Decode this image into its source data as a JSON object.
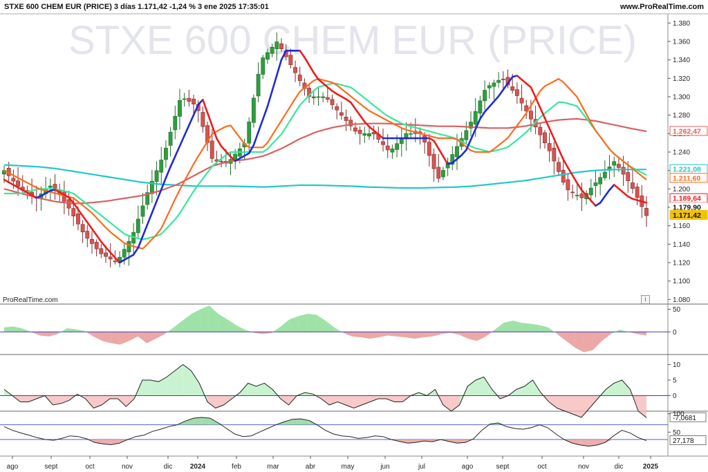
{
  "header": {
    "title_line": "STXE 600 CHEM EUR (PRICE) 3 días 1.171,42 -1,24 % 3 ene 2025 17:35:01",
    "brand": "www.ProRealTime.com"
  },
  "watermark": "STXE 600 CHEM EUR (PRICE)",
  "footer_brand": "ProRealTime.com",
  "icons": {
    "info": "i"
  },
  "colors": {
    "bull": "#2e9e3e",
    "bear": "#d9534f",
    "ma_fast_up": "#1f2ad6",
    "ma_fast_down": "#ee1c1c",
    "ma_orange": "#ff6a1a",
    "ma_green": "#34e89e",
    "ma_red": "#d9605e",
    "ma_cyan": "#1ec8c8",
    "last_price_badge": "#f2c200"
  },
  "chart_data": [
    {
      "type": "candlestick",
      "instrument": "STXE 600 CHEM EUR (PRICE)",
      "timeframe": "3 días",
      "ylim": [
        1.075,
        1.39
      ],
      "y_ticks": [
        "1.080",
        "1.100",
        "1.120",
        "1.140",
        "1.160",
        "1.180",
        "1.200",
        "1.220",
        "1.240",
        "1.260",
        "1.280",
        "1.300",
        "1.320",
        "1.340",
        "1.360",
        "1.380"
      ],
      "x_ticks": [
        "ago",
        "sept",
        "oct",
        "nov",
        "dic",
        "2024",
        "feb",
        "mar",
        "abr",
        "may",
        "jun",
        "jul",
        "ago",
        "sept",
        "oct",
        "nov",
        "dic",
        "2025"
      ],
      "last_price": "1.171,42",
      "price_labels": [
        {
          "text": "1.262,47",
          "value": 1.2625,
          "color": "#d9605e",
          "style": "outline"
        },
        {
          "text": "1.221,08",
          "value": 1.2211,
          "color": "#1ec8c8",
          "style": "outline"
        },
        {
          "text": "1.211,60",
          "value": 1.2116,
          "color": "#ff6a1a",
          "style": "outline"
        },
        {
          "text": "1.189,64",
          "value": 1.1896,
          "color": "#ee1c1c",
          "style": "outline"
        },
        {
          "text": "1.179,90",
          "value": 1.1799,
          "color": "#333333",
          "style": "plain"
        },
        {
          "text": "1.171,42",
          "value": 1.1714,
          "color": "#f2c200",
          "style": "filled"
        }
      ],
      "close_anchors": [
        1.22,
        1.2,
        1.19,
        1.205,
        1.18,
        1.15,
        1.13,
        1.12,
        1.15,
        1.2,
        1.24,
        1.3,
        1.29,
        1.23,
        1.23,
        1.25,
        1.34,
        1.36,
        1.33,
        1.3,
        1.3,
        1.28,
        1.26,
        1.26,
        1.24,
        1.26,
        1.26,
        1.21,
        1.24,
        1.27,
        1.31,
        1.32,
        1.3,
        1.27,
        1.24,
        1.2,
        1.19,
        1.21,
        1.23,
        1.205,
        1.171
      ],
      "ma_fast_anchors": [
        1.21,
        1.2,
        1.19,
        1.2,
        1.19,
        1.165,
        1.14,
        1.12,
        1.13,
        1.175,
        1.22,
        1.26,
        1.3,
        1.25,
        1.23,
        1.24,
        1.29,
        1.35,
        1.35,
        1.32,
        1.305,
        1.295,
        1.27,
        1.255,
        1.255,
        1.255,
        1.255,
        1.225,
        1.24,
        1.28,
        1.3,
        1.325,
        1.31,
        1.27,
        1.23,
        1.2,
        1.18,
        1.205,
        1.19,
        1.185
      ],
      "ma_orange_anchors": [
        1.22,
        1.21,
        1.2,
        1.195,
        1.19,
        1.175,
        1.155,
        1.14,
        1.135,
        1.155,
        1.195,
        1.23,
        1.26,
        1.27,
        1.245,
        1.245,
        1.275,
        1.305,
        1.32,
        1.315,
        1.3,
        1.285,
        1.275,
        1.265,
        1.26,
        1.255,
        1.255,
        1.24,
        1.24,
        1.255,
        1.28,
        1.31,
        1.32,
        1.3,
        1.265,
        1.24,
        1.225,
        1.21
      ],
      "ma_green_anchors": [
        1.195,
        1.195,
        1.2,
        1.2,
        1.195,
        1.18,
        1.165,
        1.15,
        1.145,
        1.15,
        1.17,
        1.2,
        1.225,
        1.24,
        1.24,
        1.24,
        1.26,
        1.29,
        1.31,
        1.315,
        1.31,
        1.295,
        1.28,
        1.27,
        1.265,
        1.26,
        1.255,
        1.245,
        1.24,
        1.245,
        1.26,
        1.28,
        1.295,
        1.29,
        1.265,
        1.24,
        1.225,
        1.215
      ],
      "ma_red_anchors": [
        1.2,
        1.195,
        1.19,
        1.186,
        1.184,
        1.185,
        1.187,
        1.19,
        1.193,
        1.198,
        1.205,
        1.215,
        1.225,
        1.23,
        1.232,
        1.236,
        1.244,
        1.254,
        1.262,
        1.267,
        1.27,
        1.271,
        1.271,
        1.27,
        1.269,
        1.268,
        1.268,
        1.267,
        1.266,
        1.266,
        1.268,
        1.272,
        1.275,
        1.276,
        1.274,
        1.27,
        1.266,
        1.2625
      ],
      "ma_cyan_anchors": [
        1.226,
        1.225,
        1.224,
        1.222,
        1.219,
        1.216,
        1.213,
        1.21,
        1.207,
        1.205,
        1.204,
        1.203,
        1.203,
        1.203,
        1.2025,
        1.202,
        1.203,
        1.204,
        1.204,
        1.2035,
        1.203,
        1.202,
        1.2015,
        1.201,
        1.201,
        1.2015,
        1.202,
        1.203,
        1.205,
        1.207,
        1.209,
        1.212,
        1.215,
        1.218,
        1.22,
        1.221,
        1.221,
        1.2211
      ]
    },
    {
      "type": "area",
      "y_ticks": [
        "50",
        "0"
      ],
      "ylim": [
        -50,
        60
      ],
      "zero_line": 0,
      "values": [
        10,
        12,
        8,
        0,
        -8,
        -10,
        -5,
        8,
        6,
        2,
        -10,
        -20,
        -25,
        -28,
        -20,
        -10,
        -25,
        -15,
        -5,
        10,
        25,
        40,
        50,
        58,
        40,
        28,
        15,
        5,
        -2,
        -5,
        -2,
        12,
        28,
        35,
        40,
        38,
        25,
        10,
        -2,
        -10,
        -12,
        -15,
        -12,
        -8,
        -10,
        -12,
        -15,
        -12,
        -10,
        -5,
        -2,
        -6,
        -15,
        -20,
        -10,
        5,
        20,
        25,
        20,
        18,
        15,
        10,
        -5,
        -20,
        -35,
        -45,
        -40,
        -20,
        -5,
        5,
        0,
        -5,
        -8
      ]
    },
    {
      "type": "area",
      "y_ticks": [
        "10",
        "5",
        "0"
      ],
      "ylim": [
        -5,
        13
      ],
      "zero_line": 0,
      "last_value": "-7,0681",
      "values": [
        2,
        0,
        -2,
        -2,
        -1,
        0,
        -3,
        -2.5,
        -1.5,
        0.5,
        -1,
        -4,
        -3,
        -1,
        -1,
        -3.5,
        -1,
        5,
        5,
        4.5,
        6,
        8,
        10,
        8,
        4,
        -2,
        -4,
        -3,
        -1,
        1,
        4,
        3,
        4,
        2,
        -1,
        -3,
        0,
        1,
        0.5,
        -1,
        -3,
        -2,
        -3,
        -4,
        -3,
        -2,
        -1,
        -1,
        -2,
        -2,
        0,
        1,
        0,
        2,
        -3,
        -5,
        -3,
        3,
        5,
        6,
        2,
        -1,
        0,
        2,
        3,
        5,
        1,
        -2,
        -4,
        -5,
        -6,
        -7,
        -4,
        -1,
        2,
        4,
        5,
        2,
        -5,
        -7.07
      ]
    },
    {
      "type": "area",
      "y_ticks": [
        "100",
        "50"
      ],
      "ylim": [
        -15,
        105
      ],
      "ref_lines": [
        70,
        30
      ],
      "last_value": "27,178",
      "values": [
        65,
        55,
        48,
        42,
        35,
        30,
        28,
        33,
        40,
        38,
        32,
        22,
        18,
        16,
        20,
        30,
        38,
        42,
        52,
        58,
        65,
        70,
        80,
        88,
        90,
        88,
        75,
        60,
        45,
        38,
        40,
        50,
        60,
        70,
        78,
        85,
        86,
        82,
        70,
        55,
        45,
        40,
        38,
        33,
        35,
        40,
        38,
        30,
        25,
        20,
        22,
        26,
        24,
        30,
        25,
        20,
        22,
        32,
        55,
        72,
        75,
        65,
        60,
        58,
        62,
        70,
        62,
        45,
        30,
        20,
        15,
        12,
        15,
        22,
        40,
        55,
        48,
        35,
        27.18
      ]
    }
  ]
}
